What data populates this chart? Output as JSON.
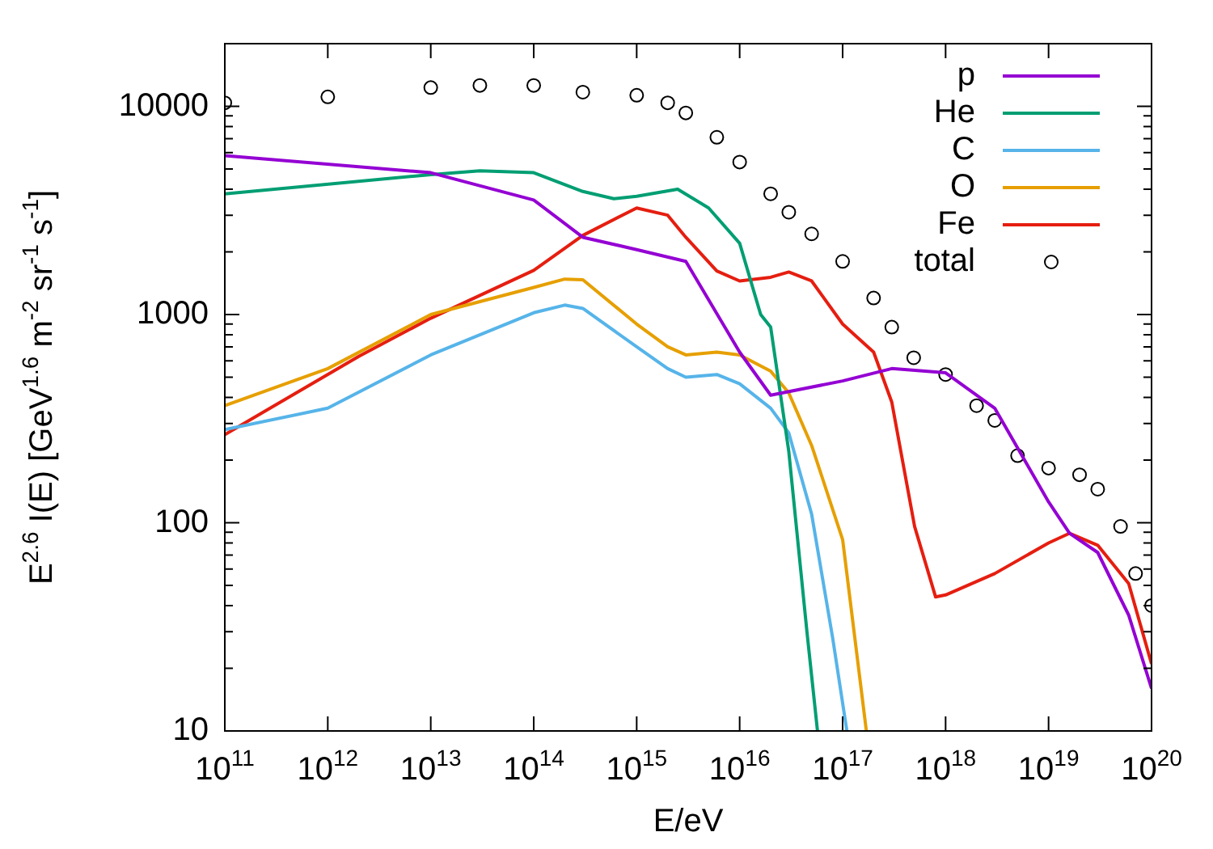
{
  "chart_data": {
    "type": "line",
    "xlabel": "E/eV",
    "ylabel": "E$^{2.6}$ I(E) [GeV$^{1.6}$ m$^{-2}$ sr$^{-1}$ s$^{-1}$]",
    "log": "xy",
    "legend": "top right",
    "marker": "none",
    "line_style": "solid",
    "xlim": [
      100000000000.0,
      1e+20
    ],
    "ylim": [
      10,
      20000
    ],
    "xticks": [
      {
        "value": 100000000000.0,
        "label": "10$^{11}$"
      },
      {
        "value": 1000000000000.0,
        "label": "10$^{12}$"
      },
      {
        "value": 10000000000000.0,
        "label": "10$^{13}$"
      },
      {
        "value": 100000000000000.0,
        "label": "10$^{14}$"
      },
      {
        "value": 1000000000000000.0,
        "label": "10$^{15}$"
      },
      {
        "value": 1e+16,
        "label": "10$^{16}$"
      },
      {
        "value": 1e+17,
        "label": "10$^{17}$"
      },
      {
        "value": 1e+18,
        "label": "10$^{18}$"
      },
      {
        "value": 1e+19,
        "label": "10$^{19}$"
      },
      {
        "value": 1e+20,
        "label": "10$^{20}$"
      }
    ],
    "yticks": [
      10,
      {
        "value": 20,
        "label": null
      },
      {
        "value": 30,
        "label": null
      },
      {
        "value": 40,
        "label": null
      },
      {
        "value": 50,
        "label": null
      },
      {
        "value": 60,
        "label": null
      },
      {
        "value": 70,
        "label": null
      },
      {
        "value": 80,
        "label": null
      },
      {
        "value": 90,
        "label": null
      },
      100,
      {
        "value": 200,
        "label": null
      },
      {
        "value": 300,
        "label": null
      },
      {
        "value": 400,
        "label": null
      },
      {
        "value": 500,
        "label": null
      },
      {
        "value": 600,
        "label": null
      },
      {
        "value": 700,
        "label": null
      },
      {
        "value": 800,
        "label": null
      },
      {
        "value": 900,
        "label": null
      },
      1000,
      {
        "value": 2000,
        "label": null
      },
      {
        "value": 3000,
        "label": null
      },
      {
        "value": 4000,
        "label": null
      },
      {
        "value": 5000,
        "label": null
      },
      {
        "value": 6000,
        "label": null
      },
      {
        "value": 7000,
        "label": null
      },
      {
        "value": 8000,
        "label": null
      },
      {
        "value": 9000,
        "label": null
      },
      10000,
      {
        "value": 20000,
        "label": null
      }
    ],
    "series": [
      {
        "name": "p",
        "color": "#9400d3",
        "x": [
          100000000000.0,
          10000000000000.0,
          100000000000000.0,
          300000000000000.0,
          1000000000000000.0,
          3000000000000000.0,
          1e+16,
          2e+16,
          1e+17,
          3e+17,
          1e+18,
          3e+18,
          1e+19,
          1.6e+19,
          3e+19,
          6e+19,
          1e+20
        ],
        "values": [
          5800,
          4800,
          3550,
          2350,
          2050,
          1800,
          660,
          410,
          480,
          550,
          525,
          355,
          126,
          89,
          72,
          36,
          16
        ]
      },
      {
        "name": "He",
        "color": "#009e73",
        "x": [
          100000000000.0,
          10000000000000.0,
          30000000000000.0,
          100000000000000.0,
          300000000000000.0,
          600000000000000.0,
          1000000000000000.0,
          2500000000000000.0,
          5000000000000000.0,
          1e+16,
          1.6e+16,
          2e+16,
          3e+16,
          4.5e+16,
          5.7e+16
        ],
        "values": [
          3800,
          4700,
          4900,
          4800,
          3900,
          3600,
          3700,
          4000,
          3250,
          2200,
          1000,
          870,
          220,
          30,
          10
        ]
      },
      {
        "name": "C",
        "color": "#56b4e9",
        "x": [
          100000000000.0,
          1000000000000.0,
          10000000000000.0,
          100000000000000.0,
          200000000000000.0,
          300000000000000.0,
          1000000000000000.0,
          2000000000000000.0,
          3000000000000000.0,
          6000000000000000.0,
          1e+16,
          2e+16,
          3e+16,
          5e+16,
          8e+16,
          1.1e+17
        ],
        "values": [
          280,
          355,
          640,
          1020,
          1110,
          1070,
          700,
          550,
          500,
          515,
          465,
          355,
          270,
          110,
          28,
          10
        ]
      },
      {
        "name": "O",
        "color": "#e69f00",
        "x": [
          100000000000.0,
          1000000000000.0,
          10000000000000.0,
          100000000000000.0,
          200000000000000.0,
          300000000000000.0,
          1000000000000000.0,
          2000000000000000.0,
          3000000000000000.0,
          6000000000000000.0,
          1e+16,
          2e+16,
          3e+16,
          5e+16,
          1e+17,
          1.7e+17
        ],
        "values": [
          365,
          550,
          1000,
          1350,
          1480,
          1470,
          900,
          700,
          640,
          660,
          640,
          535,
          420,
          235,
          83,
          10
        ]
      },
      {
        "name": "Fe",
        "color": "#e51e10",
        "x": [
          100000000000.0,
          2000000000000.0,
          10000000000000.0,
          100000000000000.0,
          300000000000000.0,
          1000000000000000.0,
          2000000000000000.0,
          3000000000000000.0,
          6000000000000000.0,
          1e+16,
          2e+16,
          3e+16,
          5e+16,
          1e+17,
          2e+17,
          3e+17,
          5e+17,
          8e+17,
          1e+18,
          3e+18,
          1e+19,
          1.6e+19,
          3e+19,
          6e+19,
          1e+20
        ],
        "values": [
          265,
          630,
          960,
          1630,
          2400,
          3250,
          3000,
          2350,
          1620,
          1450,
          1510,
          1600,
          1450,
          900,
          660,
          380,
          96,
          44,
          45,
          57,
          80,
          89,
          78,
          51,
          21
        ]
      },
      {
        "name": "total",
        "type": "scatter",
        "marker": "circle",
        "color": "#000000",
        "x": [
          100000000000.0,
          1000000000000.0,
          10000000000000.0,
          30000000000000.0,
          100000000000000.0,
          300000000000000.0,
          1000000000000000.0,
          2000000000000000.0,
          3000000000000000.0,
          6000000000000000.0,
          1e+16,
          2e+16,
          3e+16,
          5e+16,
          1e+17,
          2e+17,
          3e+17,
          4.9e+17,
          1e+18,
          2e+18,
          3e+18,
          5e+18,
          1e+19,
          2e+19,
          3e+19,
          5e+19,
          7e+19,
          1e+20
        ],
        "values": [
          10400,
          11100,
          12300,
          12600,
          12600,
          11700,
          11300,
          10400,
          9300,
          7100,
          5400,
          3800,
          3100,
          2440,
          1800,
          1200,
          870,
          620,
          515,
          365,
          310,
          210,
          183,
          170,
          145,
          96,
          57,
          40
        ]
      }
    ]
  }
}
